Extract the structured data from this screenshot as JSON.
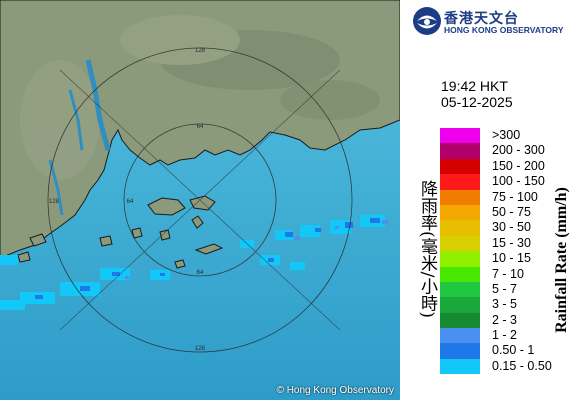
{
  "header": {
    "org_chinese": "香港天文台",
    "org_english": "HONG KONG OBSERVATORY",
    "logo_icon": "hko-logo-icon"
  },
  "timestamp": {
    "time": "19:42 HKT",
    "date": "05-12-2025"
  },
  "map": {
    "copyright": "© Hong Kong Observatory",
    "range_rings": [
      {
        "radius_km": 64,
        "label": "64"
      },
      {
        "radius_km": 128,
        "label": "128"
      }
    ],
    "sea_color": "#3fb0d8",
    "land_color": "#8a9a78"
  },
  "legend": {
    "title_chinese": "降雨率(毫米/小時)",
    "title_english": "Rainfall Rate (mm/h)",
    "items": [
      {
        "label": ">300",
        "color": "#ee00ee"
      },
      {
        "label": "200 - 300",
        "color": "#b0006c"
      },
      {
        "label": "150 - 200",
        "color": "#d40000"
      },
      {
        "label": "100 - 150",
        "color": "#ff1a1a"
      },
      {
        "label": "75 - 100",
        "color": "#f07c00"
      },
      {
        "label": "50 - 75",
        "color": "#f2a800"
      },
      {
        "label": "30 - 50",
        "color": "#e8be00"
      },
      {
        "label": "15 - 30",
        "color": "#d8d000"
      },
      {
        "label": "10 - 15",
        "color": "#90f000"
      },
      {
        "label": "7 - 10",
        "color": "#48e800"
      },
      {
        "label": "5 - 7",
        "color": "#20c840"
      },
      {
        "label": "3 - 5",
        "color": "#1aa83a"
      },
      {
        "label": "2 - 3",
        "color": "#168a30"
      },
      {
        "label": "1 - 2",
        "color": "#4a90f0"
      },
      {
        "label": "0.50 - 1",
        "color": "#1e78e8"
      },
      {
        "label": "0.15 - 0.50",
        "color": "#12c8f8"
      }
    ]
  }
}
